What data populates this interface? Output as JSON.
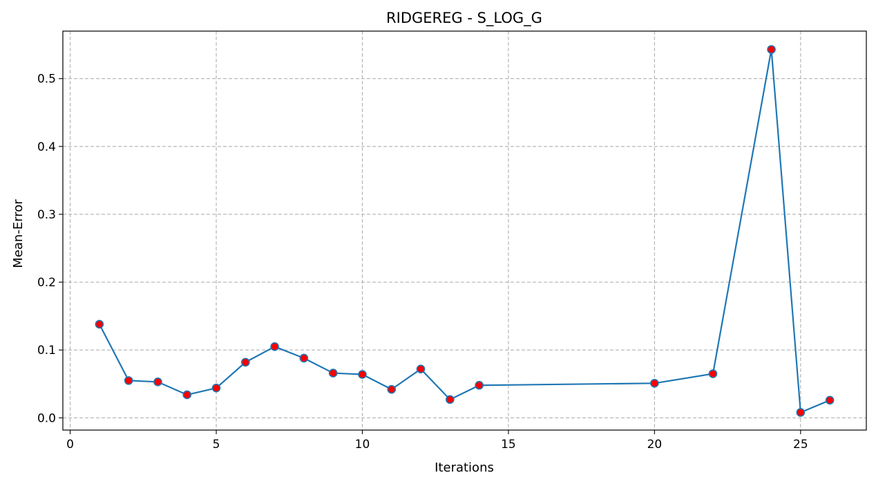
{
  "chart_data": {
    "type": "line",
    "title": "RIDGEREG - S_LOG_G",
    "xlabel": "Iterations",
    "ylabel": "Mean-Error",
    "xlim": [
      -0.25,
      27.25
    ],
    "ylim": [
      -0.018,
      0.57
    ],
    "xticks": [
      0,
      5,
      10,
      15,
      20,
      25
    ],
    "yticks": [
      0.0,
      0.1,
      0.2,
      0.3,
      0.4,
      0.5
    ],
    "xtick_labels": [
      "0",
      "5",
      "10",
      "15",
      "20",
      "25"
    ],
    "ytick_labels": [
      "0.0",
      "0.1",
      "0.2",
      "0.3",
      "0.4",
      "0.5"
    ],
    "grid": true,
    "grid_style": "dashed",
    "series": [
      {
        "x": [
          1,
          2,
          3,
          4,
          5,
          6,
          7,
          8,
          9,
          10,
          11,
          12,
          13,
          14,
          20,
          22,
          24,
          25,
          26
        ],
        "y": [
          0.138,
          0.055,
          0.053,
          0.034,
          0.044,
          0.082,
          0.105,
          0.088,
          0.066,
          0.064,
          0.042,
          0.072,
          0.027,
          0.048,
          0.051,
          0.065,
          0.543,
          0.008,
          0.026
        ]
      }
    ],
    "colors": {
      "line": "#1f77b4",
      "marker_face": "#ff0000",
      "marker_edge": "#1f77b4",
      "grid": "#b0b0b0",
      "axes": "#000000"
    }
  }
}
